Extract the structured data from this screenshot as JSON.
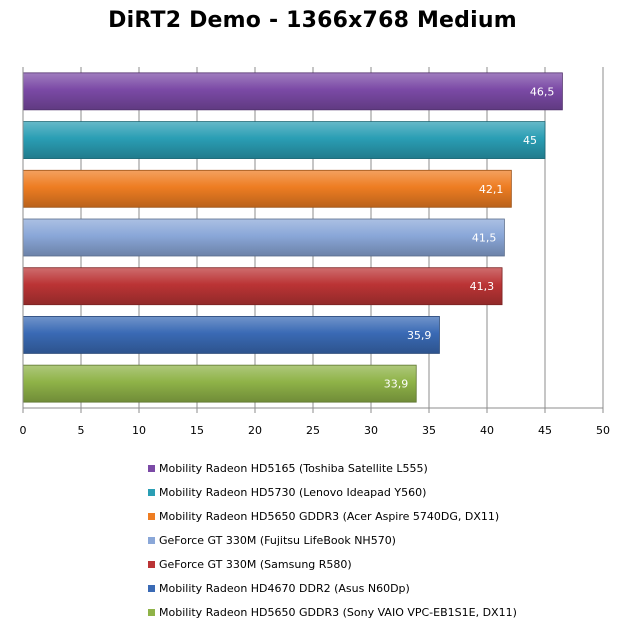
{
  "chart_data": {
    "type": "bar",
    "orientation": "horizontal",
    "title": "DiRT2 Demo - 1366x768 Medium",
    "xlabel": "",
    "ylabel": "",
    "xlim": [
      0,
      50
    ],
    "x_ticks": [
      "0",
      "5",
      "10",
      "15",
      "20",
      "25",
      "30",
      "35",
      "40",
      "45",
      "50"
    ],
    "grid": true,
    "legend_position": "bottom",
    "series": [
      {
        "name": "Mobility Radeon HD5165 (Toshiba Satellite L555)",
        "value": 46.5,
        "label": "46,5",
        "color": "#7b4aa6"
      },
      {
        "name": "Mobility Radeon HD5730 (Lenovo Ideapad Y560)",
        "value": 45,
        "label": "45",
        "color": "#2a9eb4"
      },
      {
        "name": "Mobility Radeon HD5650 GDDR3 (Acer Aspire 5740DG, DX11)",
        "value": 42.1,
        "label": "42,1",
        "color": "#ee7d22"
      },
      {
        "name": "GeForce GT 330M (Fujitsu LifeBook NH570)",
        "value": 41.5,
        "label": "41,5",
        "color": "#8aa7d8"
      },
      {
        "name": "GeForce GT 330M (Samsung R580)",
        "value": 41.3,
        "label": "41,3",
        "color": "#bb3435"
      },
      {
        "name": "Mobility Radeon HD4670 DDR2 (Asus N60Dp)",
        "value": 35.9,
        "label": "35,9",
        "color": "#3a6ab5"
      },
      {
        "name": "Mobility Radeon HD5650 GDDR3 (Sony VAIO VPC-EB1S1E, DX11)",
        "value": 33.9,
        "label": "33,9",
        "color": "#8fb348"
      }
    ]
  }
}
